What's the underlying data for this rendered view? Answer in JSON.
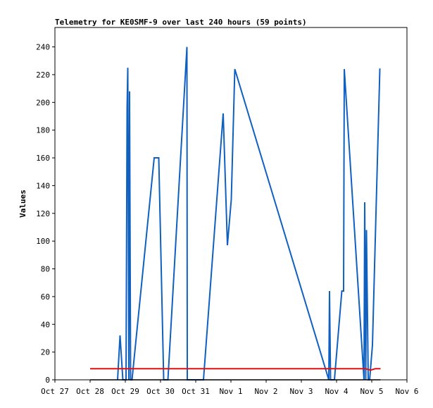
{
  "chart_data": {
    "type": "line",
    "title": "Telemetry for KE0SMF-9 over last 240 hours (59 points)",
    "xlabel": "",
    "ylabel": "Values",
    "ylim": [
      0,
      254
    ],
    "xlim": [
      0,
      10
    ],
    "x_unit": "days since Oct 27 00:00",
    "grid": false,
    "legend": "none",
    "yticks": [
      0,
      20,
      40,
      60,
      80,
      100,
      120,
      140,
      160,
      180,
      200,
      220,
      240
    ],
    "xticks": [
      {
        "x": 0,
        "label": "Oct 27"
      },
      {
        "x": 1,
        "label": "Oct 28"
      },
      {
        "x": 2,
        "label": "Oct 29"
      },
      {
        "x": 3,
        "label": "Oct 30"
      },
      {
        "x": 4,
        "label": "Oct 31"
      },
      {
        "x": 5,
        "label": "Nov 1"
      },
      {
        "x": 6,
        "label": "Nov 2"
      },
      {
        "x": 7,
        "label": "Nov 3"
      },
      {
        "x": 8,
        "label": "Nov 4"
      },
      {
        "x": 9,
        "label": "Nov 5"
      },
      {
        "x": 10,
        "label": "Nov 6"
      }
    ],
    "series": [
      {
        "color": "#1060c0",
        "x": [
          1.78,
          1.85,
          1.93,
          2.02,
          2.05,
          2.07,
          2.1,
          2.12,
          2.15,
          2.19,
          2.82,
          2.95,
          3.09,
          3.21,
          3.75,
          3.76,
          4.22,
          4.78,
          4.9,
          5.01,
          5.11,
          7.78,
          7.8,
          7.83,
          7.94,
          8.15,
          8.2,
          8.22,
          8.78,
          8.8,
          8.83,
          8.85,
          8.9,
          8.94,
          9.02,
          9.23,
          9.25
        ],
        "y": [
          0,
          32,
          0,
          0,
          196,
          225,
          0,
          208,
          0,
          0,
          160,
          160,
          0,
          0,
          240,
          0,
          0,
          192,
          97,
          130,
          224,
          0,
          64,
          0,
          0,
          64,
          64,
          224,
          0,
          128,
          0,
          108,
          0,
          0,
          25,
          224,
          224
        ]
      },
      {
        "color": "#dd1111",
        "x": [
          1.0,
          8.82,
          8.97,
          9.1,
          9.25
        ],
        "y": [
          8,
          8,
          7,
          8,
          8
        ]
      },
      {
        "color": "#000000",
        "x": [
          1.0,
          9.25
        ],
        "y": [
          0,
          0
        ]
      }
    ]
  }
}
